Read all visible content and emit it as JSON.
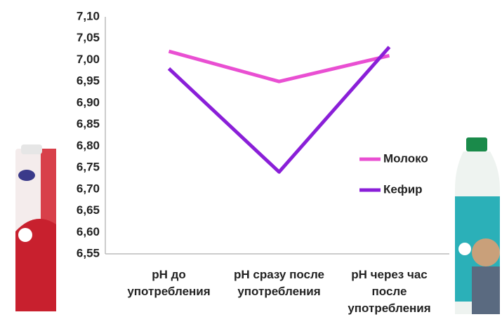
{
  "chart_data": {
    "type": "line",
    "categories": [
      "pH до употребления",
      "pH сразу после употребления",
      "pH через час после употребления"
    ],
    "series": [
      {
        "name": "Молоко",
        "color": "#e94fd2",
        "values": [
          7.02,
          6.95,
          7.01
        ]
      },
      {
        "name": "Кефир",
        "color": "#8a1fd8",
        "values": [
          6.98,
          6.74,
          7.03
        ]
      }
    ],
    "ylim": [
      6.55,
      7.1
    ],
    "yticks": [
      {
        "value": 6.55,
        "label": "6,55"
      },
      {
        "value": 6.6,
        "label": "6,60"
      },
      {
        "value": 6.65,
        "label": "6,65"
      },
      {
        "value": 6.7,
        "label": "6,70"
      },
      {
        "value": 6.75,
        "label": "6,75"
      },
      {
        "value": 6.8,
        "label": "6,80"
      },
      {
        "value": 6.85,
        "label": "6,85"
      },
      {
        "value": 6.9,
        "label": "6,90"
      },
      {
        "value": 6.95,
        "label": "6,95"
      },
      {
        "value": 7.0,
        "label": "7,00"
      },
      {
        "value": 7.05,
        "label": "7,05"
      },
      {
        "value": 7.1,
        "label": "7,10"
      }
    ],
    "grid": false,
    "legend": "right"
  }
}
